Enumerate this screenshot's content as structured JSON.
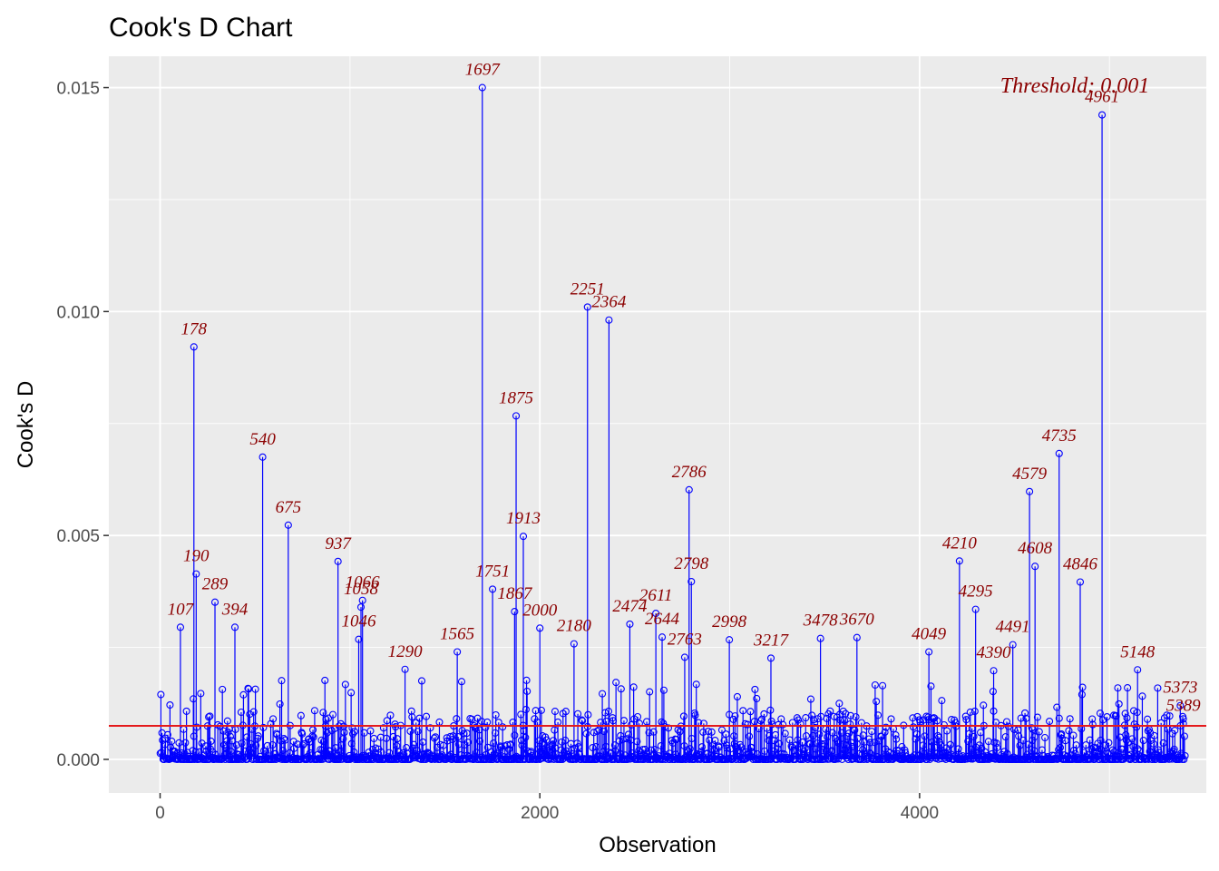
{
  "chart_data": {
    "type": "scatter",
    "title": "Cook's D Chart",
    "xlabel": "Observation",
    "ylabel": "Cook's D",
    "xlim": [
      -270,
      5510
    ],
    "ylim": [
      -0.00075,
      0.0157
    ],
    "x_ticks": [
      0,
      2000,
      4000
    ],
    "x_tick_labels": [
      "0",
      "2000",
      "4000"
    ],
    "y_ticks": [
      0.0,
      0.005,
      0.01,
      0.015
    ],
    "y_tick_labels": [
      "0.000",
      "0.005",
      "0.010",
      "0.015"
    ],
    "grid": true,
    "n_observations": 5400,
    "threshold": {
      "value": 0.00075,
      "label": "Threshold: 0.001",
      "color": "#e41a1c"
    },
    "colors": {
      "points": "#0000ff",
      "labels": "#8b0000",
      "panel": "#ebebeb",
      "grid": "#ffffff"
    },
    "labeled_points": [
      {
        "x": 1697,
        "y": 0.015,
        "label": "1697"
      },
      {
        "x": 4961,
        "y": 0.01439,
        "label": "4961"
      },
      {
        "x": 2251,
        "y": 0.0101,
        "label": "2251"
      },
      {
        "x": 2364,
        "y": 0.00981,
        "label": "2364"
      },
      {
        "x": 178,
        "y": 0.00921,
        "label": "178"
      },
      {
        "x": 1875,
        "y": 0.00767,
        "label": "1875"
      },
      {
        "x": 4735,
        "y": 0.00683,
        "label": "4735"
      },
      {
        "x": 540,
        "y": 0.00675,
        "label": "540"
      },
      {
        "x": 2786,
        "y": 0.00602,
        "label": "2786"
      },
      {
        "x": 4579,
        "y": 0.00598,
        "label": "4579"
      },
      {
        "x": 675,
        "y": 0.00523,
        "label": "675"
      },
      {
        "x": 1913,
        "y": 0.00498,
        "label": "1913"
      },
      {
        "x": 937,
        "y": 0.00442,
        "label": "937"
      },
      {
        "x": 4210,
        "y": 0.00443,
        "label": "4210"
      },
      {
        "x": 4608,
        "y": 0.00431,
        "label": "4608"
      },
      {
        "x": 190,
        "y": 0.00414,
        "label": "190"
      },
      {
        "x": 2798,
        "y": 0.00397,
        "label": "2798"
      },
      {
        "x": 4846,
        "y": 0.00396,
        "label": "4846"
      },
      {
        "x": 1751,
        "y": 0.0038,
        "label": "1751"
      },
      {
        "x": 1066,
        "y": 0.00355,
        "label": "1066"
      },
      {
        "x": 289,
        "y": 0.00351,
        "label": "289"
      },
      {
        "x": 1058,
        "y": 0.0034,
        "label": "1058"
      },
      {
        "x": 4295,
        "y": 0.00335,
        "label": "4295"
      },
      {
        "x": 1867,
        "y": 0.0033,
        "label": "1867"
      },
      {
        "x": 2611,
        "y": 0.00326,
        "label": "2611"
      },
      {
        "x": 2000,
        "y": 0.00293,
        "label": "2000"
      },
      {
        "x": 107,
        "y": 0.00295,
        "label": "107"
      },
      {
        "x": 394,
        "y": 0.00295,
        "label": "394"
      },
      {
        "x": 2474,
        "y": 0.00302,
        "label": "2474"
      },
      {
        "x": 4491,
        "y": 0.00256,
        "label": "4491"
      },
      {
        "x": 3478,
        "y": 0.0027,
        "label": "3478"
      },
      {
        "x": 3670,
        "y": 0.00272,
        "label": "3670"
      },
      {
        "x": 2998,
        "y": 0.00267,
        "label": "2998"
      },
      {
        "x": 1046,
        "y": 0.00268,
        "label": "1046"
      },
      {
        "x": 2180,
        "y": 0.00258,
        "label": "2180"
      },
      {
        "x": 1565,
        "y": 0.0024,
        "label": "1565"
      },
      {
        "x": 2644,
        "y": 0.00273,
        "label": "2644"
      },
      {
        "x": 3217,
        "y": 0.00226,
        "label": "3217"
      },
      {
        "x": 5148,
        "y": 0.002,
        "label": "5148"
      },
      {
        "x": 4049,
        "y": 0.0024,
        "label": "4049"
      },
      {
        "x": 4390,
        "y": 0.00198,
        "label": "4390"
      },
      {
        "x": 2763,
        "y": 0.00228,
        "label": "2763"
      },
      {
        "x": 1290,
        "y": 0.00201,
        "label": "1290"
      },
      {
        "x": 5373,
        "y": 0.0012,
        "label": "5373"
      },
      {
        "x": 5389,
        "y": 0.0008,
        "label": "5389"
      }
    ]
  }
}
